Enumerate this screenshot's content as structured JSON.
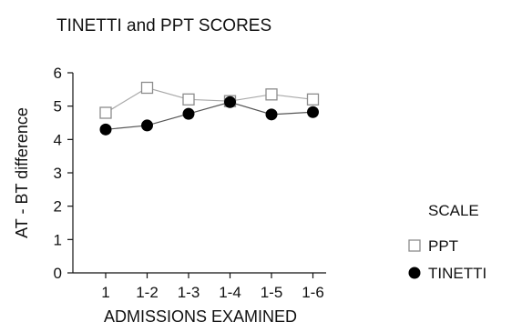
{
  "chart_data": {
    "type": "line",
    "title": "TINETTI and PPT SCORES",
    "xlabel": "ADMISSIONS EXAMINED",
    "ylabel": "AT - BT difference",
    "categories": [
      "1",
      "1-2",
      "1-3",
      "1-4",
      "1-5",
      "1-6"
    ],
    "ylim": [
      0,
      6
    ],
    "yticks": [
      0,
      1,
      2,
      3,
      4,
      5,
      6
    ],
    "grid": false,
    "legend_title": "SCALE",
    "legend_position": "right",
    "series": [
      {
        "name": "PPT",
        "marker": "open-square",
        "line_color": "#a9a9a9",
        "marker_color": "#8c8c8c",
        "values": [
          4.8,
          5.55,
          5.2,
          5.15,
          5.35,
          5.2
        ]
      },
      {
        "name": "TINETTI",
        "marker": "filled-circle",
        "line_color": "#555555",
        "marker_color": "#000000",
        "values": [
          4.3,
          4.42,
          4.77,
          5.12,
          4.75,
          4.82
        ]
      }
    ]
  }
}
